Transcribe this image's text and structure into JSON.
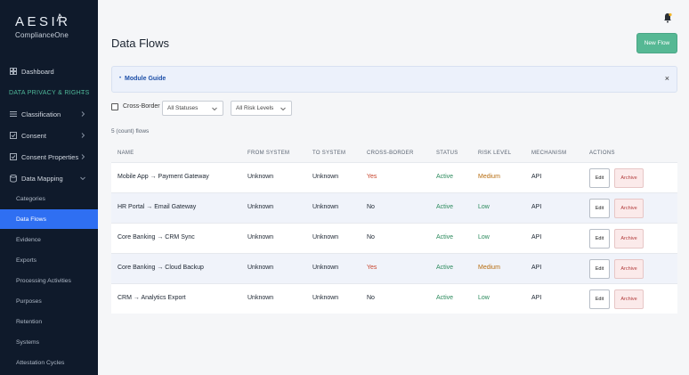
{
  "brand": {
    "name": "AESIR",
    "subtitle": "ComplianceOne"
  },
  "sidebar": {
    "dashboard": "Dashboard",
    "section": "DATA PRIVACY & RIGHTS",
    "classification": "Classification",
    "consent": "Consent",
    "consent_properties": "Consent Properties",
    "data_mapping": "Data Mapping",
    "sub_items": [
      "Categories",
      "Data Flows",
      "Evidence",
      "Exports",
      "Processing Activities",
      "Purposes",
      "Retention",
      "Systems",
      "Attestation Cycles"
    ]
  },
  "header": {
    "title": "Data Flows",
    "new_button": "New Flow"
  },
  "guide": {
    "label": "Module Guide",
    "close": "×"
  },
  "filters": {
    "cross_border_label": "Cross-Border",
    "status_selected": "All Statuses",
    "risk_selected": "All Risk Levels"
  },
  "count_text": "5 (count) flows",
  "table": {
    "columns": [
      "NAME",
      "FROM SYSTEM",
      "TO SYSTEM",
      "CROSS-BORDER",
      "STATUS",
      "RISK LEVEL",
      "MECHANISM",
      "ACTIONS"
    ],
    "edit_label": "Edit",
    "archive_label": "Archive",
    "rows": [
      {
        "name": "Mobile App → Payment Gateway",
        "from": "Unknown",
        "to": "Unknown",
        "cross": "Yes",
        "status": "Active",
        "risk": "Medium",
        "mechanism": "API"
      },
      {
        "name": "HR Portal → Email Gateway",
        "from": "Unknown",
        "to": "Unknown",
        "cross": "No",
        "status": "Active",
        "risk": "Low",
        "mechanism": "API"
      },
      {
        "name": "Core Banking → CRM Sync",
        "from": "Unknown",
        "to": "Unknown",
        "cross": "No",
        "status": "Active",
        "risk": "Low",
        "mechanism": "API"
      },
      {
        "name": "Core Banking → Cloud Backup",
        "from": "Unknown",
        "to": "Unknown",
        "cross": "Yes",
        "status": "Active",
        "risk": "Medium",
        "mechanism": "API"
      },
      {
        "name": "CRM → Analytics Export",
        "from": "Unknown",
        "to": "Unknown",
        "cross": "No",
        "status": "Active",
        "risk": "Low",
        "mechanism": "API"
      }
    ]
  },
  "colors": {
    "sidebar_bg": "#0f1a2b",
    "accent_blue": "#2f6ff2",
    "primary_green": "#56b894",
    "danger": "#c7432b",
    "warning": "#b76d10",
    "success": "#2b8a5c"
  },
  "icons": {
    "dashboard": "dashboard-icon",
    "classification": "list-icon",
    "consent": "checkbox-icon",
    "consent_properties": "checkbox-icon",
    "data_mapping": "database-icon",
    "bell": "bell-icon"
  }
}
